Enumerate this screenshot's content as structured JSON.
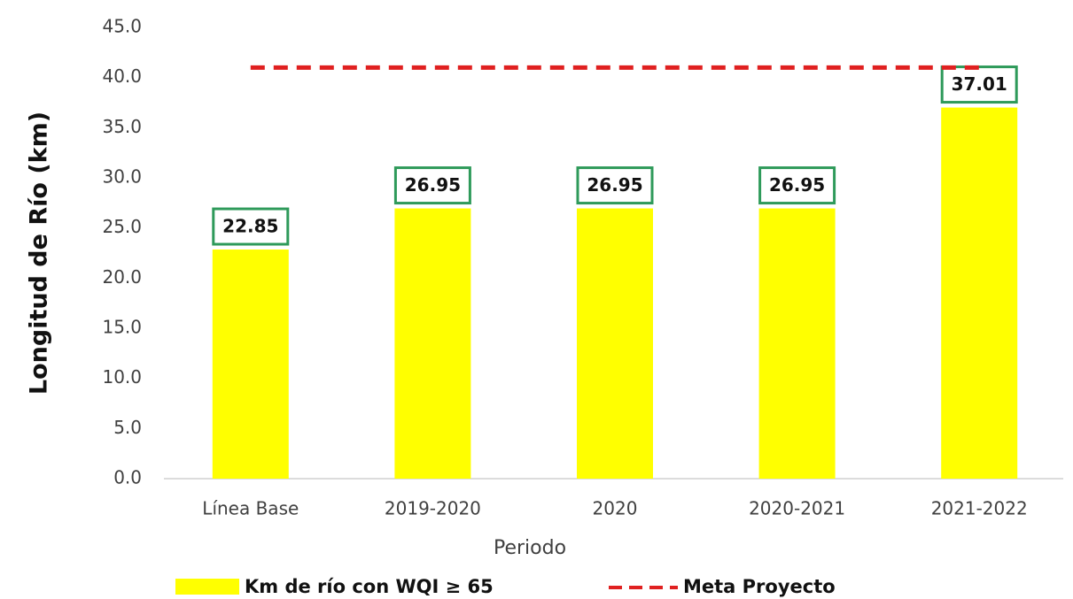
{
  "chart_data": {
    "type": "bar",
    "y_label": "Longitud de Río (km)",
    "x_label": "Periodo",
    "categories": [
      "Línea Base",
      "2019-2020",
      "2020",
      "2020-2021",
      "2021-2022"
    ],
    "series": [
      {
        "name": "Km de río con WQI ≥ 65",
        "type": "bar",
        "color": "#ffff00",
        "label_border": "#2e9a5a",
        "values": [
          22.85,
          26.95,
          26.95,
          26.95,
          37.01
        ]
      },
      {
        "name": "Meta Proyecto",
        "type": "line",
        "dashed": true,
        "color": "#e02020",
        "values": [
          41,
          41,
          41,
          41,
          41
        ]
      }
    ],
    "ylim": [
      0,
      45
    ],
    "yticks": [
      {
        "value": 0,
        "label": "0.0"
      },
      {
        "value": 5,
        "label": "5.0"
      },
      {
        "value": 10,
        "label": "10.0"
      },
      {
        "value": 15,
        "label": "15.0"
      },
      {
        "value": 20,
        "label": "20.0"
      },
      {
        "value": 25,
        "label": "25.0"
      },
      {
        "value": 30,
        "label": "30.0"
      },
      {
        "value": 35,
        "label": "35.0"
      },
      {
        "value": 40,
        "label": "40.0"
      },
      {
        "value": 45,
        "label": "45.0"
      }
    ],
    "grid": false,
    "legend": "bottom"
  }
}
